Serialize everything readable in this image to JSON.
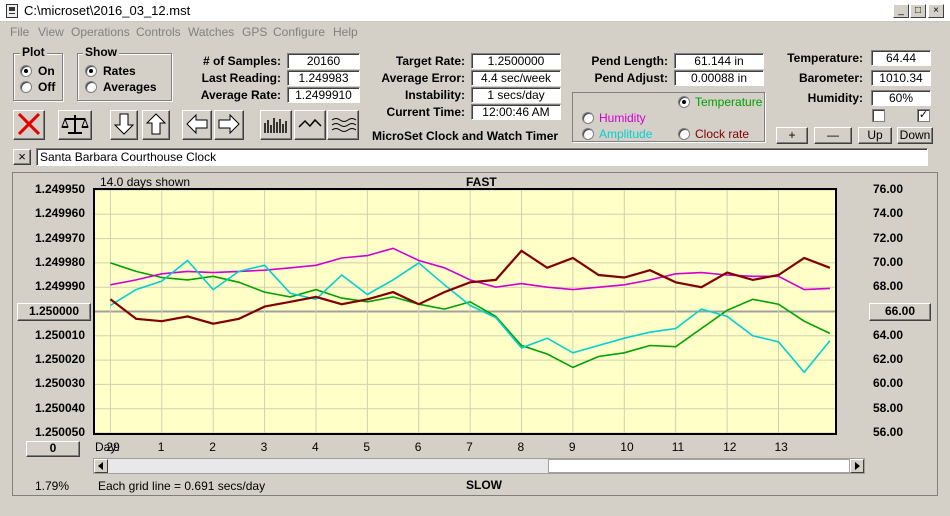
{
  "window": {
    "title": "C:\\microset\\2016_03_12.mst",
    "min": "_",
    "max": "□",
    "close": "×"
  },
  "menu": [
    "File",
    "View",
    "Operations",
    "Controls",
    "Watches",
    "GPS",
    "Configure",
    "Help"
  ],
  "plot_group": {
    "title": "Plot",
    "on": "On",
    "off": "Off",
    "selected": "On"
  },
  "show_group": {
    "title": "Show",
    "rates": "Rates",
    "averages": "Averages",
    "selected": "Rates"
  },
  "stats": {
    "samples_label": "# of Samples:",
    "samples": "20160",
    "last_label": "Last Reading:",
    "last": "1.249983",
    "avg_label": "Average Rate:",
    "avg": "1.2499910",
    "target_label": "Target Rate:",
    "target": "1.2500000",
    "avgerr_label": "Average Error:",
    "avgerr": "4.4 sec/week",
    "instab_label": "Instability:",
    "instab": "1 secs/day",
    "time_label": "Current Time:",
    "time": "12:00:46 AM",
    "pendlen_label": "Pend Length:",
    "pendlen": "61.144 in",
    "pendadj_label": "Pend Adjust:",
    "pendadj": "0.00088 in",
    "temp_label": "Temperature:",
    "temp": "64.44",
    "baro_label": "Barometer:",
    "baro": "1010.34",
    "hum_label": "Humidity:",
    "hum": "60%"
  },
  "app_name": "MicroSet Clock and Watch Timer",
  "sensor_options": {
    "temperature": "Temperature",
    "humidity": "Humidity",
    "amplitude": "Amplitude",
    "clock_rate": "Clock rate",
    "selected": "Temperature",
    "colors": {
      "temperature": "#00a000",
      "humidity": "#d000d0",
      "amplitude": "#00d0d0",
      "clock_rate": "#800000"
    }
  },
  "adjust_buttons": {
    "plus": "+",
    "minus": "—",
    "up": "Up",
    "down": "Down"
  },
  "clock_name": "Santa Barbara Courthouse Clock",
  "graph": {
    "days_shown": "14.0 days shown",
    "fast": "FAST",
    "slow": "SLOW",
    "grid_info": "Each grid line = 0.691 secs/day",
    "percent": "1.79%",
    "left_center": "1.250000",
    "right_center": "66.00",
    "zero_btn": "0",
    "day_label": "Day:"
  },
  "chart_data": {
    "type": "line",
    "x_unit": "day",
    "day_ticks": [
      "29",
      "1",
      "2",
      "3",
      "4",
      "5",
      "6",
      "7",
      "8",
      "9",
      "10",
      "11",
      "12",
      "13"
    ],
    "left_axis": {
      "ticks": [
        "1.249950",
        "1.249960",
        "1.249970",
        "1.249980",
        "1.249990",
        "",
        "1.250010",
        "1.250020",
        "1.250030",
        "1.250040",
        "1.250050"
      ],
      "range": [
        1.24995,
        1.25005
      ]
    },
    "right_axis": {
      "ticks": [
        "76.00",
        "74.00",
        "72.00",
        "70.00",
        "68.00",
        "",
        "64.00",
        "62.00",
        "60.00",
        "58.00",
        "56.00"
      ],
      "range": [
        56,
        76
      ]
    },
    "series": [
      {
        "name": "Temperature",
        "color": "#00a000",
        "axis": "right",
        "x": [
          0,
          0.5,
          1,
          1.5,
          2,
          2.5,
          3,
          3.5,
          4,
          4.5,
          5,
          5.5,
          6,
          6.5,
          7,
          7.5,
          8,
          8.5,
          9,
          9.5,
          10,
          10.5,
          11,
          11.5,
          12,
          12.5,
          13,
          13.5,
          14
        ],
        "y": [
          70.0,
          69.3,
          68.8,
          68.6,
          68.9,
          68.4,
          67.6,
          67.2,
          67.8,
          67.1,
          66.8,
          67.2,
          66.6,
          66.2,
          66.8,
          65.6,
          63.2,
          62.5,
          61.4,
          62.3,
          62.6,
          63.2,
          63.1,
          64.6,
          66.1,
          67.0,
          66.6,
          65.2,
          64.2
        ]
      },
      {
        "name": "Humidity",
        "color": "#d000d0",
        "axis": "right",
        "x": [
          0,
          0.5,
          1,
          1.5,
          2,
          2.5,
          3,
          3.5,
          4,
          4.5,
          5,
          5.5,
          6,
          6.5,
          7,
          7.5,
          8,
          8.5,
          9,
          9.5,
          10,
          10.5,
          11,
          11.5,
          12,
          12.5,
          13,
          13.5,
          14
        ],
        "y": [
          68.2,
          68.6,
          69.1,
          69.3,
          69.2,
          69.3,
          69.4,
          69.6,
          69.8,
          70.4,
          70.6,
          71.2,
          70.2,
          69.6,
          68.6,
          68.0,
          68.3,
          68.0,
          67.8,
          68.0,
          68.2,
          68.6,
          69.1,
          69.2,
          69.0,
          68.9,
          68.9,
          67.8,
          67.9
        ]
      },
      {
        "name": "Amplitude",
        "color": "#00d0d0",
        "axis": "right",
        "x": [
          0,
          0.5,
          1,
          1.5,
          2,
          2.5,
          3,
          3.5,
          4,
          4.5,
          5,
          5.5,
          6,
          6.5,
          7,
          7.5,
          8,
          8.5,
          9,
          9.5,
          10,
          10.5,
          11,
          11.5,
          12,
          12.5,
          13,
          13.5,
          14
        ],
        "y": [
          66.5,
          67.8,
          68.5,
          70.2,
          67.8,
          69.3,
          69.8,
          67.5,
          67.0,
          69.0,
          67.4,
          68.6,
          70.0,
          68.2,
          66.5,
          65.5,
          63.0,
          63.8,
          62.6,
          63.2,
          63.8,
          64.3,
          64.6,
          66.2,
          65.6,
          64.0,
          63.5,
          61.0,
          63.6
        ]
      },
      {
        "name": "Clock rate",
        "color": "#800000",
        "axis": "left",
        "x": [
          0,
          0.5,
          1,
          1.5,
          2,
          2.5,
          3,
          3.5,
          4,
          4.5,
          5,
          5.5,
          6,
          6.5,
          7,
          7.5,
          8,
          8.5,
          9,
          9.5,
          10,
          10.5,
          11,
          11.5,
          12,
          12.5,
          13,
          13.5,
          14
        ],
        "y": [
          1.249995,
          1.250003,
          1.250004,
          1.250002,
          1.250005,
          1.250003,
          1.249998,
          1.249996,
          1.249994,
          1.249997,
          1.249995,
          1.249992,
          1.249997,
          1.249992,
          1.249988,
          1.249987,
          1.249975,
          1.249982,
          1.249978,
          1.249985,
          1.249986,
          1.249983,
          1.249988,
          1.24999,
          1.249984,
          1.249987,
          1.249985,
          1.249978,
          1.249982
        ]
      }
    ]
  }
}
